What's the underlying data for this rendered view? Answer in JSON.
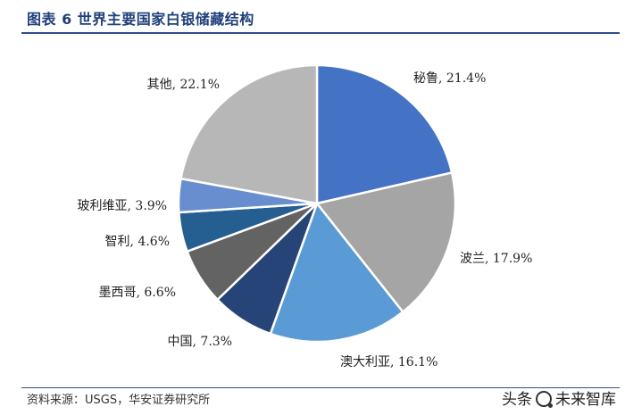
{
  "header": {
    "title": "图表 6 世界主要国家白银储藏结构"
  },
  "footer": {
    "source": "资料来源：USGS，华安证券研究所"
  },
  "watermark": {
    "text_left": "头条",
    "text_right": "未来智库"
  },
  "colors": {
    "accent": "#2e4e8f",
    "title": "#1f3f7a",
    "edge": "#ffffff"
  },
  "chart_data": {
    "type": "pie",
    "title": "",
    "start_angle_deg": 0,
    "direction": "clockwise",
    "slices": [
      {
        "label": "秘鲁, 21.4%",
        "name": "秘鲁",
        "value": 21.4,
        "color": "#4472c4"
      },
      {
        "label": "波兰, 17.9%",
        "name": "波兰",
        "value": 17.9,
        "color": "#a5a5a5"
      },
      {
        "label": "澳大利亚, 16.1%",
        "name": "澳大利亚",
        "value": 16.1,
        "color": "#5b9bd5"
      },
      {
        "label": "中国, 7.3%",
        "name": "中国",
        "value": 7.3,
        "color": "#264478"
      },
      {
        "label": "墨西哥, 6.6%",
        "name": "墨西哥",
        "value": 6.6,
        "color": "#636363"
      },
      {
        "label": "智利, 4.6%",
        "name": "智利",
        "value": 4.6,
        "color": "#255e91"
      },
      {
        "label": "玻利维亚, 3.9%",
        "name": "玻利维亚",
        "value": 3.9,
        "color": "#698ed0"
      },
      {
        "label": "其他, 22.1%",
        "name": "其他",
        "value": 22.1,
        "color": "#b7b7b7"
      }
    ]
  }
}
